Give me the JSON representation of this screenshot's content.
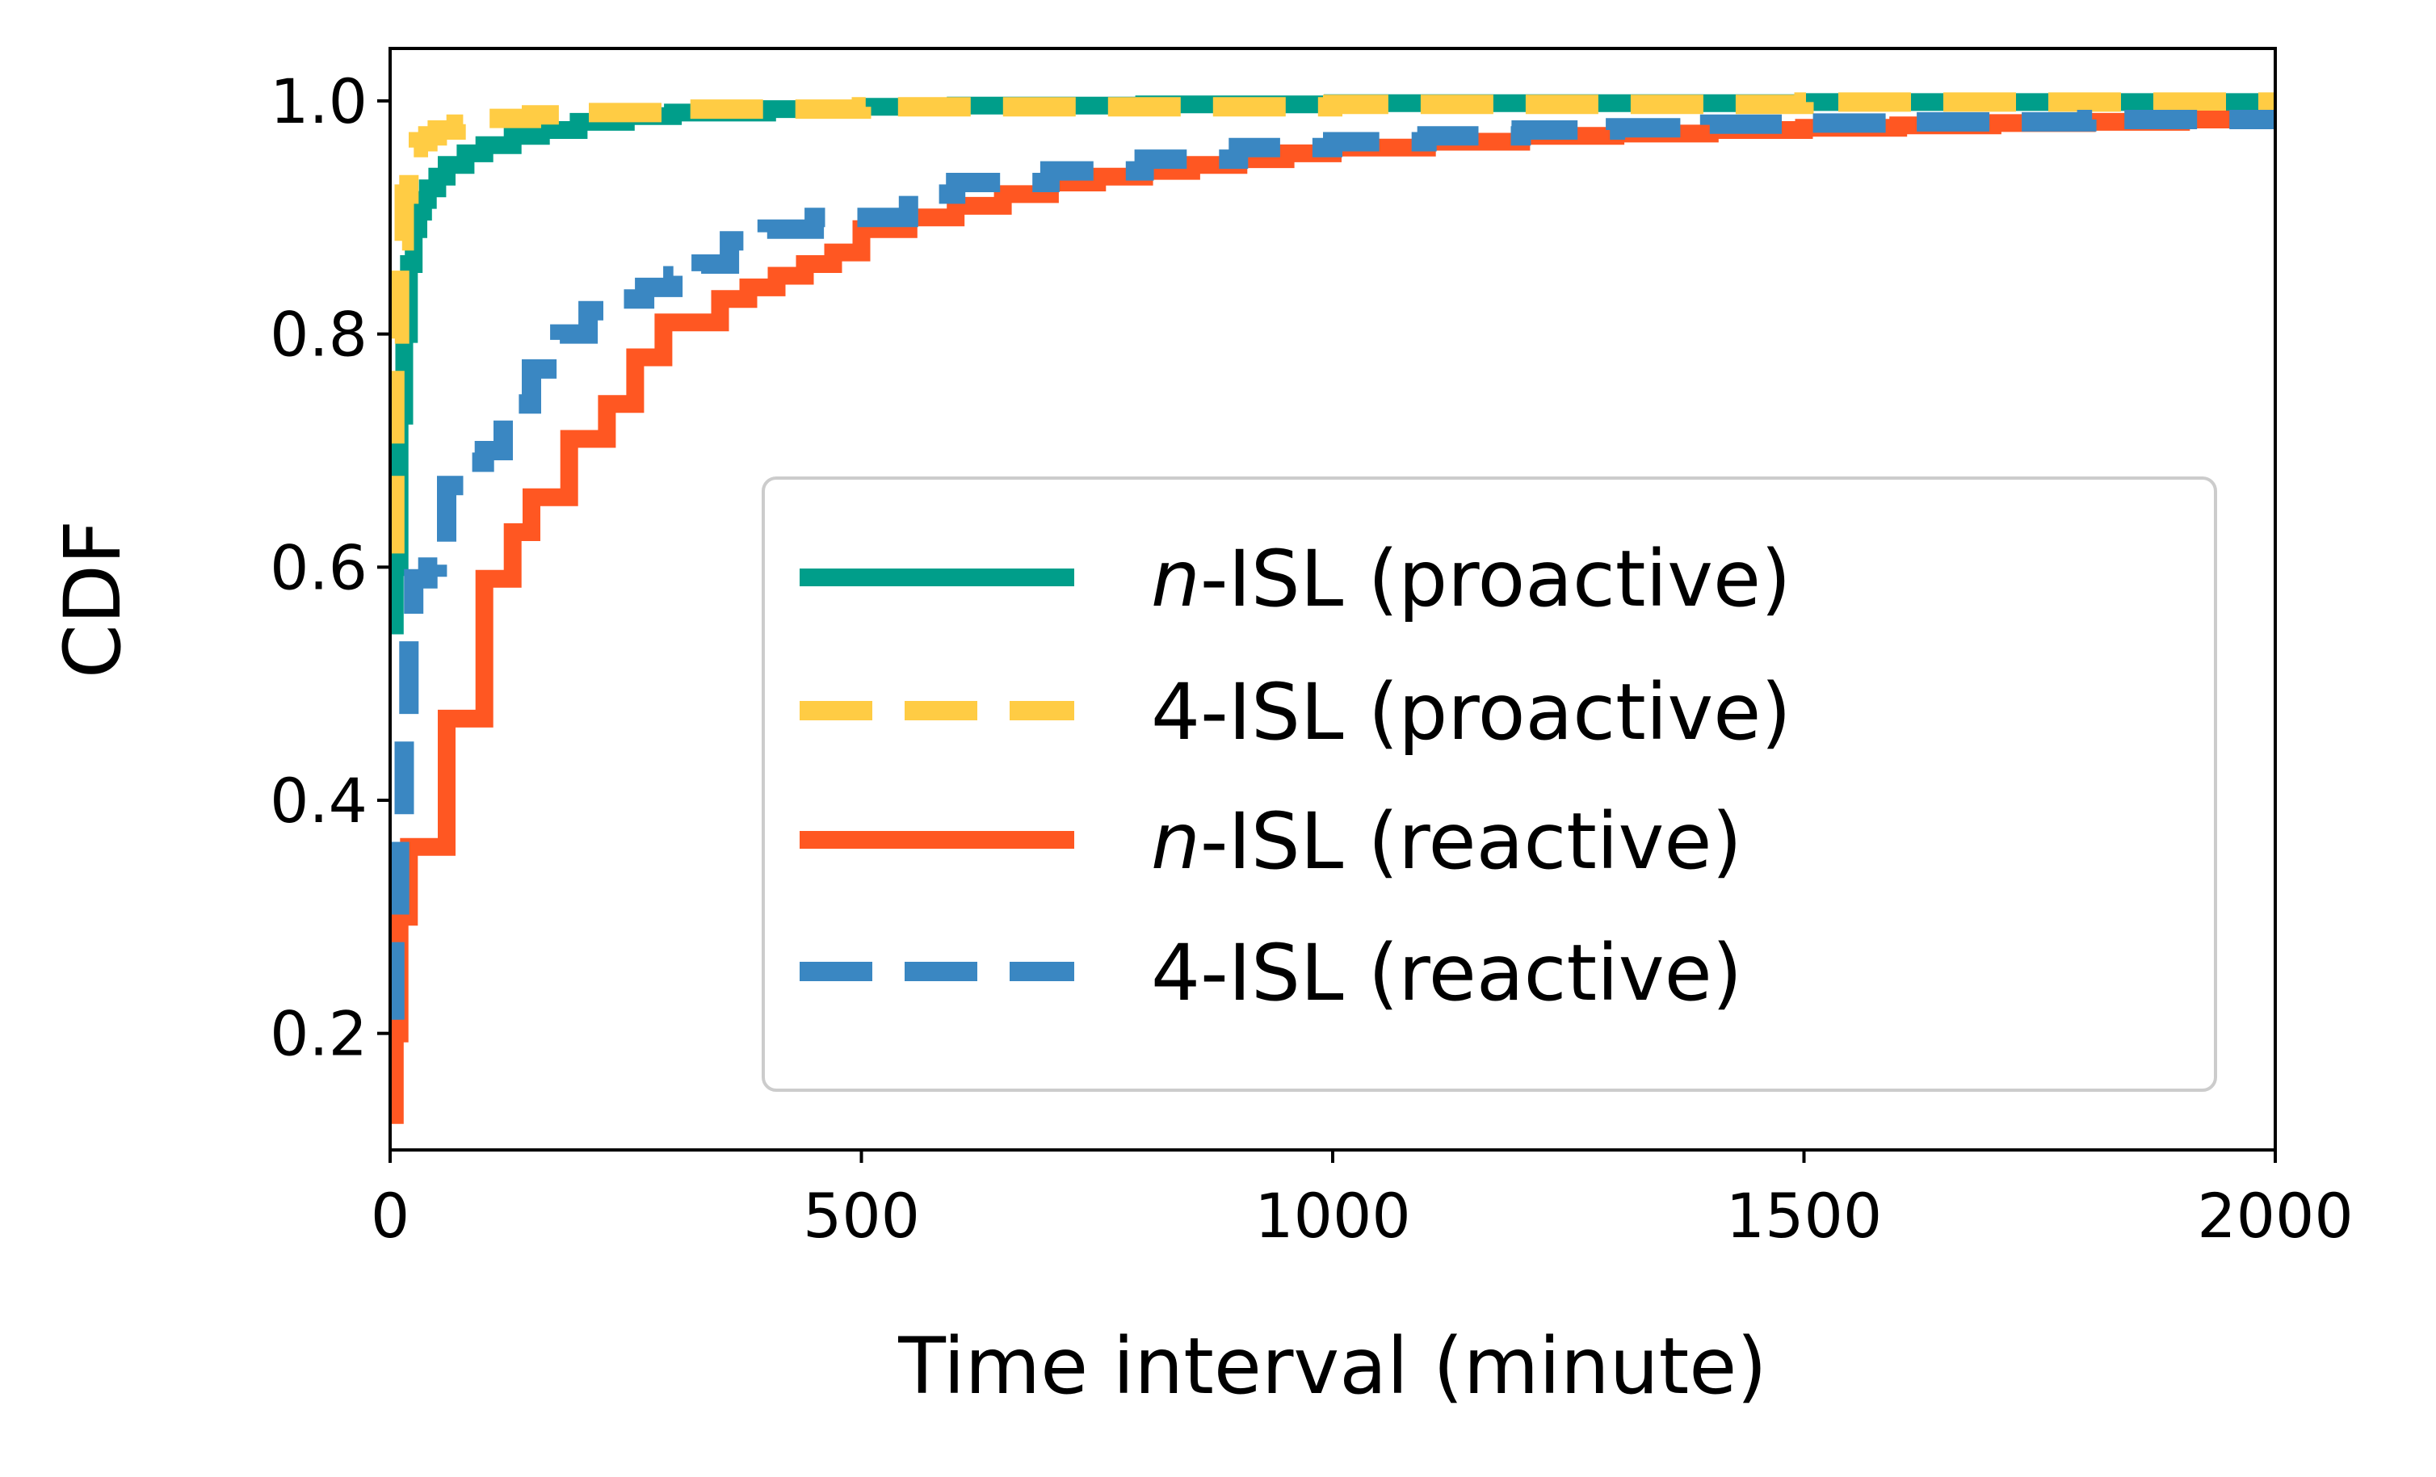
{
  "chart_data": {
    "type": "line",
    "xlabel": "Time interval (minute)",
    "ylabel": "CDF",
    "xlim": [
      0,
      2000
    ],
    "ylim": [
      0.1,
      1.045
    ],
    "xticks": [
      0,
      500,
      1000,
      1500,
      2000
    ],
    "xtick_labels": [
      "0",
      "500",
      "1000",
      "1500",
      "2000"
    ],
    "yticks": [
      0.2,
      0.4,
      0.6,
      0.8,
      1.0
    ],
    "ytick_labels": [
      "0.2",
      "0.4",
      "0.6",
      "0.8",
      "1.0"
    ],
    "grid": false,
    "legend_position": "lower-right",
    "series": [
      {
        "name_prefix": "n",
        "name_suffix": "-ISL (proactive)",
        "style": "solid",
        "color": "#009E8A",
        "x": [
          0,
          5,
          10,
          15,
          20,
          25,
          30,
          35,
          40,
          50,
          60,
          80,
          100,
          130,
          160,
          200,
          250,
          300,
          400,
          500,
          600,
          800,
          1000,
          1500,
          2000
        ],
        "y": [
          0.55,
          0.6,
          0.73,
          0.8,
          0.86,
          0.89,
          0.905,
          0.915,
          0.925,
          0.935,
          0.945,
          0.955,
          0.962,
          0.97,
          0.975,
          0.982,
          0.987,
          0.99,
          0.993,
          0.995,
          0.996,
          0.997,
          0.998,
          0.999,
          1.0
        ]
      },
      {
        "name_prefix": "",
        "name_suffix": "4-ISL (proactive)",
        "style": "dashed",
        "color": "#FFCC44",
        "x": [
          0,
          5,
          10,
          15,
          20,
          25,
          30,
          40,
          50,
          70,
          100,
          150,
          200,
          300,
          500,
          1000,
          1500,
          2000
        ],
        "y": [
          0.62,
          0.8,
          0.88,
          0.92,
          0.95,
          0.96,
          0.965,
          0.97,
          0.975,
          0.98,
          0.985,
          0.988,
          0.99,
          0.993,
          0.995,
          0.997,
          0.999,
          1.0
        ]
      },
      {
        "name_prefix": "n",
        "name_suffix": "-ISL (reactive)",
        "style": "solid",
        "color": "#FF5722",
        "x": [
          0,
          5,
          10,
          20,
          30,
          40,
          60,
          80,
          100,
          120,
          130,
          150,
          170,
          190,
          210,
          230,
          260,
          290,
          320,
          350,
          380,
          410,
          440,
          470,
          500,
          550,
          600,
          650,
          700,
          750,
          800,
          850,
          900,
          950,
          1000,
          1100,
          1200,
          1300,
          1400,
          1500,
          1600,
          1700,
          1800,
          1900,
          2000
        ],
        "y": [
          0.13,
          0.2,
          0.3,
          0.36,
          0.36,
          0.36,
          0.47,
          0.47,
          0.59,
          0.59,
          0.63,
          0.66,
          0.66,
          0.71,
          0.71,
          0.74,
          0.78,
          0.81,
          0.81,
          0.83,
          0.84,
          0.85,
          0.86,
          0.87,
          0.89,
          0.9,
          0.91,
          0.92,
          0.93,
          0.935,
          0.94,
          0.945,
          0.95,
          0.955,
          0.96,
          0.965,
          0.97,
          0.972,
          0.975,
          0.977,
          0.979,
          0.981,
          0.982,
          0.984,
          0.985
        ]
      },
      {
        "name_prefix": "",
        "name_suffix": "4-ISL (reactive)",
        "style": "dashed",
        "color": "#3A87C2",
        "x": [
          0,
          5,
          10,
          15,
          20,
          25,
          30,
          40,
          50,
          60,
          80,
          100,
          120,
          150,
          180,
          210,
          240,
          270,
          300,
          330,
          360,
          400,
          450,
          500,
          550,
          600,
          700,
          800,
          900,
          1000,
          1100,
          1200,
          1300,
          1400,
          1500,
          1600,
          1800,
          2000
        ],
        "y": [
          0.22,
          0.3,
          0.38,
          0.47,
          0.55,
          0.59,
          0.59,
          0.6,
          0.62,
          0.67,
          0.69,
          0.7,
          0.74,
          0.77,
          0.8,
          0.82,
          0.83,
          0.84,
          0.85,
          0.86,
          0.88,
          0.89,
          0.9,
          0.9,
          0.92,
          0.93,
          0.94,
          0.95,
          0.96,
          0.965,
          0.97,
          0.975,
          0.977,
          0.98,
          0.981,
          0.982,
          0.984,
          0.985
        ]
      }
    ]
  }
}
